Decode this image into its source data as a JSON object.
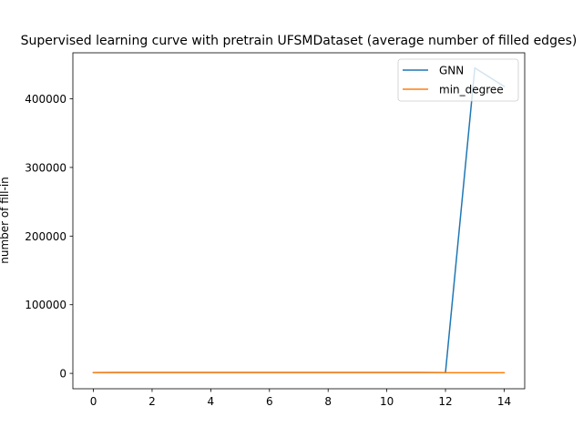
{
  "chart_data": {
    "type": "line",
    "title": "Supervised learning curve with pretrain UFSMDataset (average number of filled edges)",
    "xlabel": "",
    "ylabel": "number of fill-in",
    "xlim": [
      -0.7,
      14.7
    ],
    "ylim": [
      -22400,
      467000
    ],
    "xticks": [
      0,
      2,
      4,
      6,
      8,
      10,
      12,
      14
    ],
    "yticks": [
      0,
      100000,
      200000,
      300000,
      400000
    ],
    "grid": false,
    "legend_position": "top-right",
    "series": [
      {
        "name": "GNN",
        "color": "#1f77b4",
        "x": [
          0,
          1,
          2,
          3,
          4,
          5,
          6,
          7,
          8,
          9,
          10,
          11,
          12,
          13,
          14
        ],
        "y": [
          1200,
          1250,
          1300,
          1280,
          1260,
          1250,
          1240,
          1240,
          1240,
          1240,
          1240,
          1230,
          1200,
          445000,
          418000
        ]
      },
      {
        "name": "min_degree",
        "color": "#ff7f0e",
        "x": [
          0,
          1,
          2,
          3,
          4,
          5,
          6,
          7,
          8,
          9,
          10,
          11,
          12,
          13,
          14
        ],
        "y": [
          1000,
          1000,
          1000,
          1000,
          1000,
          1000,
          1000,
          1000,
          1000,
          1000,
          1000,
          1000,
          1000,
          1000,
          1000
        ]
      }
    ]
  }
}
